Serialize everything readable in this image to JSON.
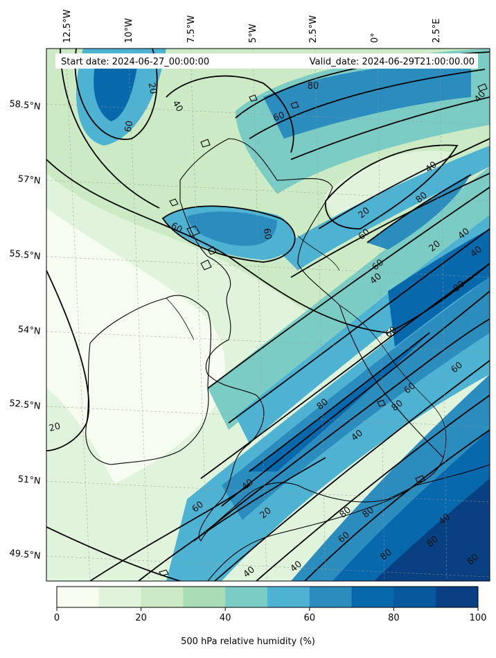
{
  "header": {
    "start_date": "Start date: 2024-06-27_00:00:00",
    "valid_date": "Valid_date: 2024-06-29T21:00:00.00"
  },
  "lon_labels": [
    "12.5°W",
    "10°W",
    "7.5°W",
    "5°W",
    "2.5°W",
    "0°",
    "2.5°E"
  ],
  "lat_labels": [
    "58.5°N",
    "57°N",
    "55.5°N",
    "54°N",
    "52.5°N",
    "51°N",
    "49.5°N"
  ],
  "contour_labels": [
    "20",
    "40",
    "60",
    "80"
  ],
  "colorbar": {
    "title": "500 hPa relative humidity (%)",
    "ticks": [
      "0",
      "20",
      "40",
      "60",
      "80",
      "100"
    ],
    "colors": [
      "#f7fcf0",
      "#e0f3db",
      "#ccebc5",
      "#a8ddb5",
      "#7bccc4",
      "#4eb3d3",
      "#2b8cbe",
      "#0868ac",
      "#08589e",
      "#084081"
    ]
  }
}
